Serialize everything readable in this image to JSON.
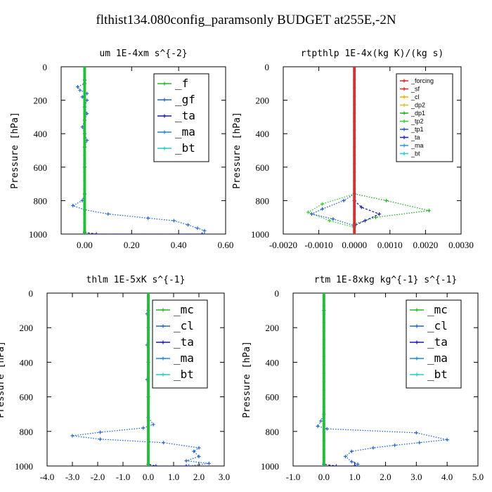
{
  "title": "flthist134.080config_paramsonly  BUDGET at255E,-2N",
  "chart_data": [
    {
      "type": "line",
      "title": "um   1E-4xm s^{-2}",
      "ylabel": "Pressure [hPa]",
      "xlim": [
        -0.1,
        0.6
      ],
      "ylim": [
        1000,
        0
      ],
      "xticks": [
        0.0,
        0.2,
        0.4,
        0.6
      ],
      "xtick_labels": [
        "0.00",
        "0.20",
        "0.40",
        "0.60"
      ],
      "yticks": [
        0,
        200,
        400,
        600,
        800,
        1000
      ],
      "legend_size": "large",
      "series": [
        {
          "name": "_f",
          "color": "#22bb22",
          "style": "solid",
          "points": [
            [
              0.0,
              0
            ],
            [
              0.0,
              1000
            ]
          ]
        },
        {
          "name": "_gf",
          "color": "#2266cc",
          "style": "dotted",
          "points": [
            [
              0.0,
              80
            ],
            [
              0.0,
              100
            ],
            [
              -0.03,
              120
            ],
            [
              -0.02,
              140
            ],
            [
              0.01,
              160
            ],
            [
              -0.01,
              180
            ],
            [
              0.01,
              200
            ],
            [
              0.0,
              240
            ],
            [
              0.01,
              280
            ],
            [
              0.0,
              320
            ],
            [
              -0.01,
              360
            ],
            [
              0.0,
              400
            ],
            [
              0.01,
              440
            ],
            [
              0.0,
              480
            ],
            [
              0.0,
              600
            ],
            [
              0.0,
              760
            ],
            [
              -0.01,
              800
            ],
            [
              -0.05,
              830
            ],
            [
              0.0,
              855
            ],
            [
              0.1,
              880
            ],
            [
              0.27,
              905
            ],
            [
              0.38,
              920
            ],
            [
              0.44,
              945
            ],
            [
              0.48,
              965
            ],
            [
              0.51,
              980
            ],
            [
              0.51,
              1000
            ]
          ]
        },
        {
          "name": "_ta",
          "color": "#1a1aaa",
          "style": "dashed",
          "points": [
            [
              0.0,
              0
            ],
            [
              0.0,
              990
            ],
            [
              0.05,
              1000
            ],
            [
              0.5,
              1000
            ]
          ]
        },
        {
          "name": "_ma",
          "color": "#1a88dd",
          "style": "dashed",
          "points": [
            [
              0.0,
              0
            ],
            [
              0.0,
              1000
            ]
          ]
        },
        {
          "name": "_bt",
          "color": "#22cccc",
          "style": "solid",
          "points": [
            [
              0.0,
              0
            ],
            [
              0.0,
              1000
            ]
          ]
        }
      ]
    },
    {
      "type": "line",
      "title": "rtpthlp   1E-4x(kg K)/(kg s)",
      "ylabel": "Pressure [hPa]",
      "xlim": [
        -0.002,
        0.003
      ],
      "ylim": [
        1000,
        0
      ],
      "xticks": [
        -0.002,
        -0.001,
        0.0,
        0.001,
        0.002,
        0.003
      ],
      "xtick_labels": [
        "-0.0020",
        "-0.0010",
        "0.0000",
        "0.0010",
        "0.0020",
        "0.0030"
      ],
      "yticks": [
        0,
        200,
        400,
        600,
        800,
        1000
      ],
      "legend_size": "small",
      "series": [
        {
          "name": "_forcing",
          "color": "#dd2222",
          "style": "solid",
          "points": [
            [
              0.0,
              0
            ],
            [
              0.0,
              1000
            ]
          ]
        },
        {
          "name": "_sf",
          "color": "#dd2222",
          "style": "solid",
          "points": [
            [
              0.0,
              0
            ],
            [
              0.0,
              1000
            ]
          ]
        },
        {
          "name": "_cl",
          "color": "#ffaa00",
          "style": "solid",
          "points": [
            [
              0.0,
              0
            ],
            [
              0.0,
              1000
            ]
          ]
        },
        {
          "name": "_dp2",
          "color": "#ddbb33",
          "style": "solid",
          "points": [
            [
              0.0,
              0
            ],
            [
              0.0,
              1000
            ]
          ]
        },
        {
          "name": "_dp1",
          "color": "#22aa22",
          "style": "dotted",
          "points": [
            [
              0.0,
              760
            ],
            [
              0.0009,
              800
            ],
            [
              0.0021,
              860
            ],
            [
              0.0006,
              900
            ],
            [
              0.0,
              940
            ],
            [
              0.0,
              1000
            ]
          ]
        },
        {
          "name": "_tp2",
          "color": "#33cc33",
          "style": "dotted",
          "points": [
            [
              0.0,
              760
            ],
            [
              -0.0009,
              820
            ],
            [
              -0.0013,
              870
            ],
            [
              -0.0007,
              920
            ],
            [
              0.0,
              960
            ],
            [
              0.0,
              1000
            ]
          ]
        },
        {
          "name": "_tp1",
          "color": "#2255cc",
          "style": "dotted",
          "points": [
            [
              0.0,
              760
            ],
            [
              -0.0003,
              800
            ],
            [
              -0.0009,
              850
            ],
            [
              -0.0012,
              880
            ],
            [
              -0.0006,
              910
            ],
            [
              0.0,
              950
            ]
          ]
        },
        {
          "name": "_ta",
          "color": "#2222aa",
          "style": "dashed",
          "points": [
            [
              0.0,
              800
            ],
            [
              0.0002,
              840
            ],
            [
              0.0007,
              880
            ],
            [
              0.0003,
              920
            ],
            [
              0.0,
              950
            ]
          ]
        },
        {
          "name": "_ma",
          "color": "#3399dd",
          "style": "dashed",
          "points": [
            [
              0.0,
              0
            ],
            [
              0.0,
              1000
            ]
          ]
        },
        {
          "name": "_bt",
          "color": "#22cccc",
          "style": "solid",
          "points": [
            [
              0.0,
              0
            ],
            [
              0.0,
              1000
            ]
          ]
        }
      ]
    },
    {
      "type": "line",
      "title": "thlm   1E-5xK s^{-1}",
      "ylabel": "Pressure [hPa]",
      "xlim": [
        -4.0,
        3.0
      ],
      "ylim": [
        1000,
        0
      ],
      "xticks": [
        -4,
        -3,
        -2,
        -1,
        0,
        1,
        2,
        3
      ],
      "xtick_labels": [
        "-4.0",
        "-3.0",
        "-2.0",
        "-1.0",
        "0.0",
        "1.0",
        "2.0",
        "3.0"
      ],
      "yticks": [
        0,
        200,
        400,
        600,
        800,
        1000
      ],
      "legend_size": "large",
      "series": [
        {
          "name": "_mc",
          "color": "#22bb22",
          "style": "solid",
          "points": [
            [
              0.0,
              0
            ],
            [
              0.0,
              1000
            ]
          ]
        },
        {
          "name": "_cl",
          "color": "#2266cc",
          "style": "dotted",
          "points": [
            [
              0.0,
              100
            ],
            [
              -0.05,
              120
            ],
            [
              0.0,
              200
            ],
            [
              -0.05,
              300
            ],
            [
              0.0,
              400
            ],
            [
              -0.05,
              500
            ],
            [
              0.0,
              600
            ],
            [
              0.0,
              720
            ],
            [
              0.2,
              760
            ],
            [
              -0.2,
              780
            ],
            [
              -1.9,
              805
            ],
            [
              -3.0,
              825
            ],
            [
              -1.9,
              845
            ],
            [
              0.6,
              865
            ],
            [
              2.0,
              895
            ],
            [
              1.8,
              915
            ],
            [
              2.0,
              945
            ],
            [
              1.5,
              970
            ],
            [
              2.4,
              985
            ],
            [
              1.6,
              1000
            ]
          ]
        },
        {
          "name": "_ta",
          "color": "#1a1aaa",
          "style": "dashed",
          "points": [
            [
              0.0,
              0
            ],
            [
              0.0,
              990
            ],
            [
              0.3,
              1000
            ],
            [
              1.5,
              1000
            ]
          ]
        },
        {
          "name": "_ma",
          "color": "#1a88dd",
          "style": "dashed",
          "points": [
            [
              0.0,
              0
            ],
            [
              0.0,
              1000
            ]
          ]
        },
        {
          "name": "_bt",
          "color": "#22cccc",
          "style": "solid",
          "points": [
            [
              0.0,
              0
            ],
            [
              0.0,
              1000
            ]
          ]
        }
      ]
    },
    {
      "type": "line",
      "title": "rtm   1E-8xkg kg^{-1} s^{-1}",
      "ylabel": "Pressure [hPa]",
      "xlim": [
        -1.0,
        5.0
      ],
      "ylim": [
        1000,
        0
      ],
      "xticks": [
        -1,
        0,
        1,
        2,
        3,
        4,
        5
      ],
      "xtick_labels": [
        "-1.0",
        "0.0",
        "1.0",
        "2.0",
        "3.0",
        "4.0",
        "5.0"
      ],
      "yticks": [
        0,
        200,
        400,
        600,
        800,
        1000
      ],
      "legend_size": "large",
      "series": [
        {
          "name": "_mc",
          "color": "#22bb22",
          "style": "solid",
          "points": [
            [
              0.0,
              0
            ],
            [
              0.0,
              1000
            ]
          ]
        },
        {
          "name": "_cl",
          "color": "#2266cc",
          "style": "dotted",
          "points": [
            [
              0.0,
              100
            ],
            [
              0.0,
              700
            ],
            [
              -0.1,
              740
            ],
            [
              -0.2,
              770
            ],
            [
              0.1,
              785
            ],
            [
              3.0,
              808
            ],
            [
              4.0,
              848
            ],
            [
              3.1,
              865
            ],
            [
              2.3,
              880
            ],
            [
              1.6,
              895
            ],
            [
              0.9,
              915
            ],
            [
              0.7,
              945
            ],
            [
              0.9,
              975
            ],
            [
              1.1,
              990
            ],
            [
              1.0,
              1000
            ]
          ]
        },
        {
          "name": "_ta",
          "color": "#1a1aaa",
          "style": "dashed",
          "points": [
            [
              0.0,
              0
            ],
            [
              0.0,
              990
            ],
            [
              0.4,
              1000
            ],
            [
              1.0,
              1000
            ]
          ]
        },
        {
          "name": "_ma",
          "color": "#1a88dd",
          "style": "dashed",
          "points": [
            [
              0.0,
              0
            ],
            [
              0.0,
              1000
            ]
          ]
        },
        {
          "name": "_bt",
          "color": "#22cccc",
          "style": "solid",
          "points": [
            [
              0.0,
              0
            ],
            [
              0.0,
              1000
            ]
          ]
        }
      ]
    }
  ]
}
